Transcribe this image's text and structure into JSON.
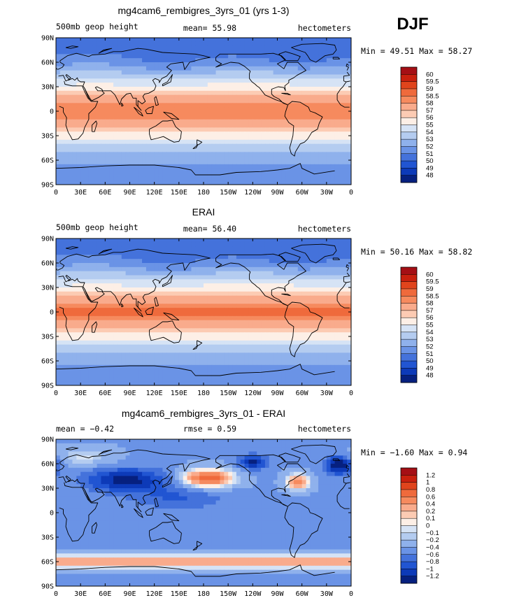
{
  "season": "DJF",
  "chart_data": [
    {
      "type": "heatmap",
      "title": "mg4cam6_rembigres_3yrs_01 (yrs 1-3)",
      "left_label": "500mb geop height",
      "center_label": "mean=  55.98",
      "right_label": "hectometers",
      "stats": "Min =  49.51 Max =  58.27",
      "min": 49.51,
      "max": 58.27,
      "mean": 55.98,
      "x_ticks": [
        "0",
        "30E",
        "60E",
        "90E",
        "120E",
        "150E",
        "180",
        "150W",
        "120W",
        "90W",
        "60W",
        "30W",
        "0"
      ],
      "y_ticks": [
        "90N",
        "60N",
        "30N",
        "0",
        "30S",
        "60S",
        "90S"
      ],
      "xlim": [
        0,
        360
      ],
      "ylim": [
        -90,
        90
      ],
      "levels": [
        "60",
        "59.5",
        "59",
        "58.5",
        "58",
        "57",
        "56",
        "55",
        "54",
        "53",
        "52",
        "51",
        "50",
        "49",
        "48"
      ],
      "colors": [
        "#a50f15",
        "#c8200e",
        "#e0441c",
        "#ef6a3c",
        "#f68a5e",
        "#f9ab8c",
        "#fccbb3",
        "#fdefe6",
        "#d6e3f5",
        "#b4ccf0",
        "#8fb1ec",
        "#6a93e6",
        "#4472db",
        "#2155d2",
        "#0d3ab8",
        "#06207f"
      ]
    },
    {
      "type": "heatmap",
      "title": "ERAI",
      "left_label": "500mb geop height",
      "center_label": "mean=  56.40",
      "right_label": "hectometers",
      "stats": "Min =  50.16 Max =  58.82",
      "min": 50.16,
      "max": 58.82,
      "mean": 56.4,
      "x_ticks": [
        "0",
        "30E",
        "60E",
        "90E",
        "120E",
        "150E",
        "180",
        "150W",
        "120W",
        "90W",
        "60W",
        "30W",
        "0"
      ],
      "y_ticks": [
        "90N",
        "60N",
        "30N",
        "0",
        "30S",
        "60S",
        "90S"
      ],
      "xlim": [
        0,
        360
      ],
      "ylim": [
        -90,
        90
      ],
      "levels": [
        "60",
        "59.5",
        "59",
        "58.5",
        "58",
        "57",
        "56",
        "55",
        "54",
        "53",
        "52",
        "51",
        "50",
        "49",
        "48"
      ],
      "colors": [
        "#a50f15",
        "#c8200e",
        "#e0441c",
        "#ef6a3c",
        "#f68a5e",
        "#f9ab8c",
        "#fccbb3",
        "#fdefe6",
        "#d6e3f5",
        "#b4ccf0",
        "#8fb1ec",
        "#6a93e6",
        "#4472db",
        "#2155d2",
        "#0d3ab8",
        "#06207f"
      ]
    },
    {
      "type": "heatmap",
      "title": "mg4cam6_rembigres_3yrs_01 - ERAI",
      "left_label": "mean =  −0.42",
      "center_label": "rmse =   0.59",
      "right_label": "hectometers",
      "stats": "Min =  −1.60 Max =   0.94",
      "min": -1.6,
      "max": 0.94,
      "mean": -0.42,
      "rmse": 0.59,
      "x_ticks": [
        "0",
        "30E",
        "60E",
        "90E",
        "120E",
        "150E",
        "180",
        "150W",
        "120W",
        "90W",
        "60W",
        "30W",
        "0"
      ],
      "y_ticks": [
        "90N",
        "60N",
        "30N",
        "0",
        "30S",
        "60S",
        "90S"
      ],
      "xlim": [
        0,
        360
      ],
      "ylim": [
        -90,
        90
      ],
      "levels": [
        "1.2",
        "1",
        "0.8",
        "0.6",
        "0.4",
        "0.2",
        "0.1",
        "0",
        "−0.1",
        "−0.2",
        "−0.4",
        "−0.6",
        "−0.8",
        "−1",
        "−1.2"
      ],
      "colors": [
        "#a50f15",
        "#c8200e",
        "#e0441c",
        "#ef6a3c",
        "#f68a5e",
        "#f9ab8c",
        "#fccbb3",
        "#fdefe6",
        "#d6e3f5",
        "#b4ccf0",
        "#8fb1ec",
        "#6a93e6",
        "#4472db",
        "#2155d2",
        "#0d3ab8",
        "#06207f"
      ]
    }
  ]
}
